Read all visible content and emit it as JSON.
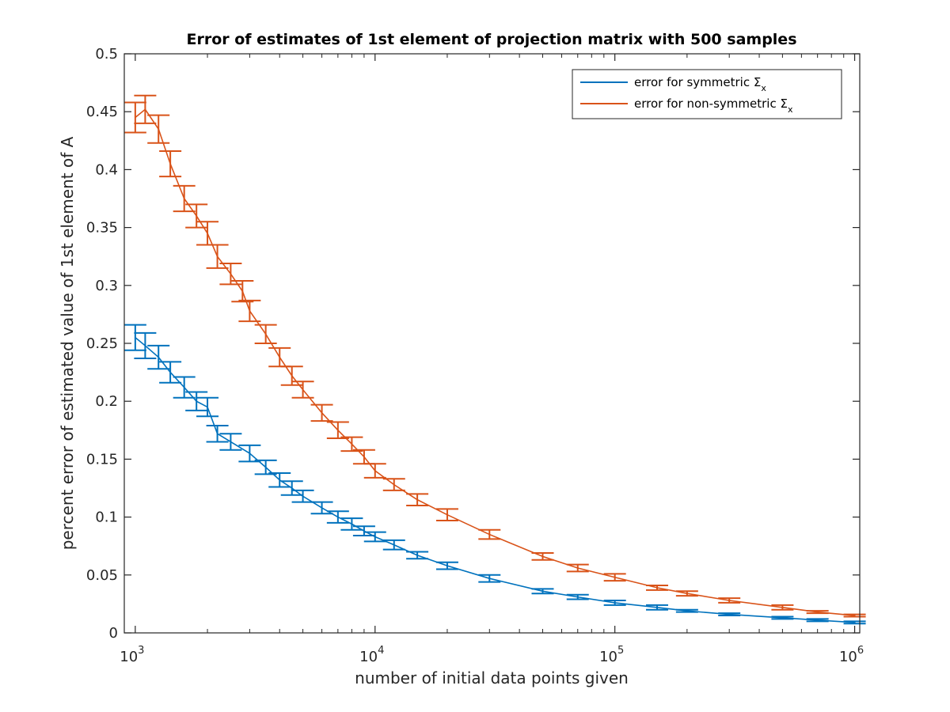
{
  "chart_data": {
    "type": "line",
    "title": "Error of estimates of 1st element of projection matrix with 500 samples",
    "xlabel": "number of initial data points given",
    "ylabel": "percent error of estimated value of 1st element of A",
    "x_scale": "log",
    "xlim": [
      900,
      1050000
    ],
    "ylim": [
      0,
      0.5
    ],
    "x_ticks": [
      {
        "value": 1000,
        "base": "10",
        "exp": "3"
      },
      {
        "value": 10000,
        "base": "10",
        "exp": "4"
      },
      {
        "value": 100000,
        "base": "10",
        "exp": "5"
      },
      {
        "value": 1000000,
        "base": "10",
        "exp": "6"
      }
    ],
    "y_ticks": [
      0,
      0.05,
      0.1,
      0.15,
      0.2,
      0.25,
      0.3,
      0.35,
      0.4,
      0.45,
      0.5
    ],
    "y_tick_labels": [
      "0",
      "0.05",
      "0.1",
      "0.15",
      "0.2",
      "0.25",
      "0.3",
      "0.35",
      "0.4",
      "0.45",
      "0.5"
    ],
    "grid": false,
    "legend_position": "top-right",
    "series": [
      {
        "name": "error for symmetric Σx",
        "legend_main": "error for symmetric Σ",
        "legend_sub": "x",
        "color": "#0072BD",
        "x": [
          1000,
          1100,
          1250,
          1400,
          1600,
          1800,
          2000,
          2200,
          2500,
          3000,
          3500,
          4000,
          4500,
          5000,
          6000,
          7000,
          8000,
          9000,
          10000,
          12000,
          15000,
          20000,
          30000,
          50000,
          70000,
          100000,
          150000,
          200000,
          300000,
          500000,
          700000,
          1000000
        ],
        "y": [
          0.255,
          0.248,
          0.238,
          0.225,
          0.212,
          0.2,
          0.195,
          0.172,
          0.165,
          0.155,
          0.143,
          0.132,
          0.125,
          0.118,
          0.108,
          0.1,
          0.094,
          0.088,
          0.083,
          0.076,
          0.067,
          0.058,
          0.047,
          0.036,
          0.031,
          0.026,
          0.022,
          0.019,
          0.016,
          0.013,
          0.011,
          0.009
        ],
        "err": [
          0.011,
          0.011,
          0.01,
          0.009,
          0.009,
          0.008,
          0.008,
          0.007,
          0.007,
          0.007,
          0.006,
          0.006,
          0.006,
          0.005,
          0.005,
          0.005,
          0.005,
          0.004,
          0.004,
          0.004,
          0.003,
          0.003,
          0.003,
          0.002,
          0.002,
          0.002,
          0.002,
          0.001,
          0.001,
          0.001,
          0.001,
          0.001
        ]
      },
      {
        "name": "error for non-symmetric Σx",
        "legend_main": "error for non-symmetric Σ",
        "legend_sub": "x",
        "color": "#D95319",
        "x": [
          1000,
          1100,
          1250,
          1400,
          1600,
          1800,
          2000,
          2200,
          2500,
          2800,
          3000,
          3500,
          4000,
          4500,
          5000,
          6000,
          7000,
          8000,
          9000,
          10000,
          12000,
          15000,
          20000,
          30000,
          50000,
          70000,
          100000,
          150000,
          200000,
          300000,
          500000,
          700000,
          1000000
        ],
        "y": [
          0.445,
          0.452,
          0.435,
          0.405,
          0.375,
          0.36,
          0.345,
          0.325,
          0.31,
          0.295,
          0.278,
          0.258,
          0.238,
          0.222,
          0.21,
          0.19,
          0.175,
          0.163,
          0.152,
          0.14,
          0.128,
          0.115,
          0.102,
          0.085,
          0.066,
          0.056,
          0.048,
          0.039,
          0.034,
          0.028,
          0.022,
          0.018,
          0.015
        ],
        "err": [
          0.013,
          0.012,
          0.012,
          0.011,
          0.011,
          0.01,
          0.01,
          0.01,
          0.009,
          0.009,
          0.009,
          0.008,
          0.008,
          0.008,
          0.007,
          0.007,
          0.007,
          0.006,
          0.006,
          0.006,
          0.005,
          0.005,
          0.005,
          0.004,
          0.003,
          0.003,
          0.003,
          0.002,
          0.002,
          0.002,
          0.002,
          0.001,
          0.001
        ]
      }
    ]
  }
}
